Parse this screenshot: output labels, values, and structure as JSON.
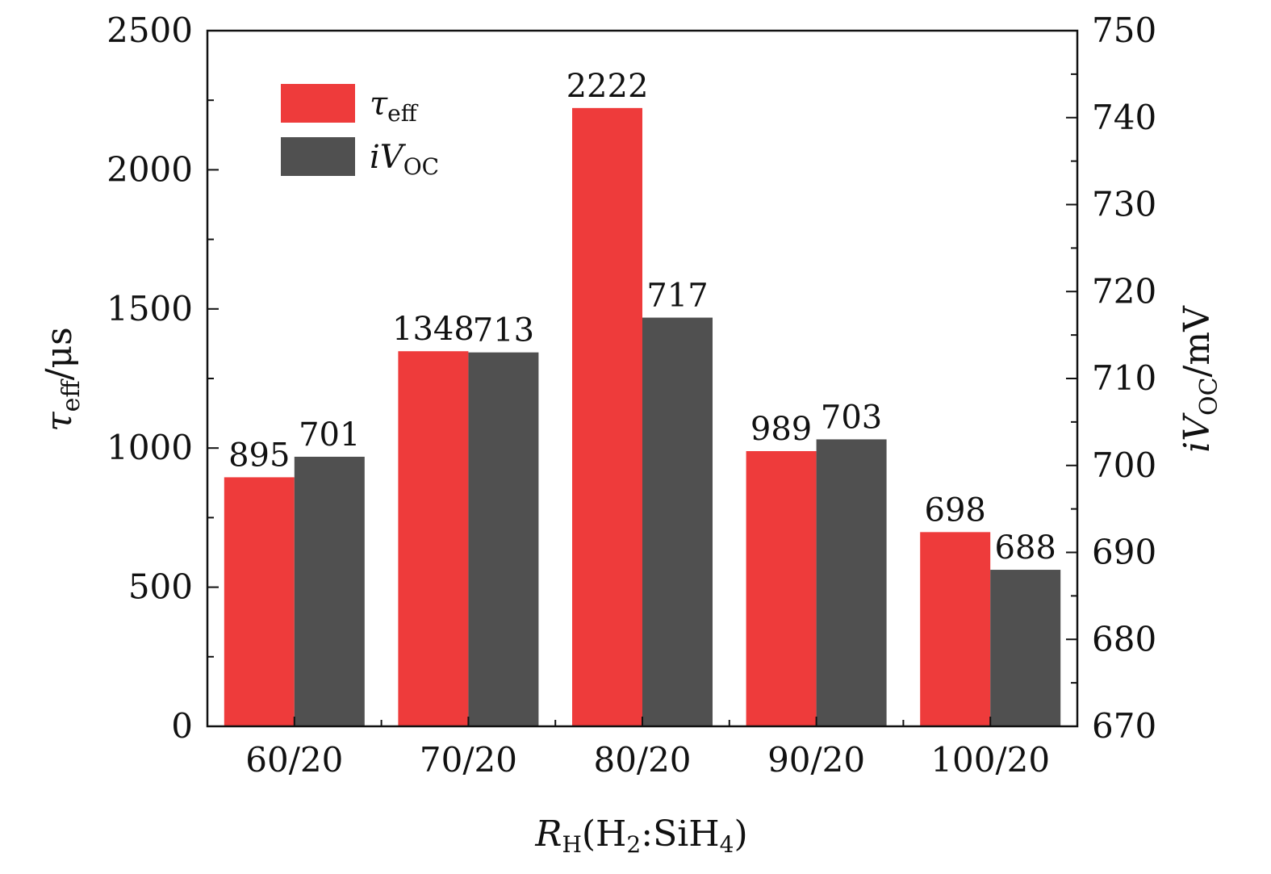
{
  "chart_data": {
    "type": "bar",
    "categories": [
      "60/20",
      "70/20",
      "80/20",
      "90/20",
      "100/20"
    ],
    "series": [
      {
        "name": "τ_eff",
        "axis": "left",
        "color": "#ee3b3b",
        "values": [
          895,
          1348,
          2222,
          989,
          698
        ]
      },
      {
        "name": "iV_OC",
        "axis": "right",
        "color": "#505050",
        "values": [
          701,
          713,
          717,
          703,
          688
        ]
      }
    ],
    "data_labels": {
      "series0": [
        "895",
        "1348",
        "2222",
        "989",
        "698"
      ],
      "series1": [
        "701",
        "713",
        "717",
        "703",
        "688"
      ]
    },
    "left_axis": {
      "ylim": [
        0,
        2500
      ],
      "ticks": [
        0,
        500,
        1000,
        1500,
        2000,
        2500
      ],
      "tick_labels": [
        "0",
        "500",
        "1000",
        "1500",
        "2000",
        "2500"
      ],
      "label_parts": {
        "sym": "τ",
        "sub": "eff",
        "unit": "/μs"
      }
    },
    "right_axis": {
      "ylim": [
        670,
        750
      ],
      "ticks": [
        670,
        680,
        690,
        700,
        710,
        720,
        730,
        740,
        750
      ],
      "tick_labels": [
        "670",
        "680",
        "690",
        "700",
        "710",
        "720",
        "730",
        "740",
        "750"
      ],
      "label_parts": {
        "sym": "iV",
        "sub": "OC",
        "unit": "/mV"
      }
    },
    "x_axis": {
      "label_parts": {
        "sym": "R",
        "sub": "H",
        "pre": "(H",
        "sub2": "2",
        "mid": ":SiH",
        "sub3": "4",
        "post": ")"
      }
    },
    "legend": {
      "position": "top-left",
      "entries": [
        {
          "sym": "τ",
          "sub": "eff",
          "color": "#ee3b3b"
        },
        {
          "sym": "iV",
          "sub": "OC",
          "color": "#505050"
        }
      ]
    },
    "grid": false
  }
}
